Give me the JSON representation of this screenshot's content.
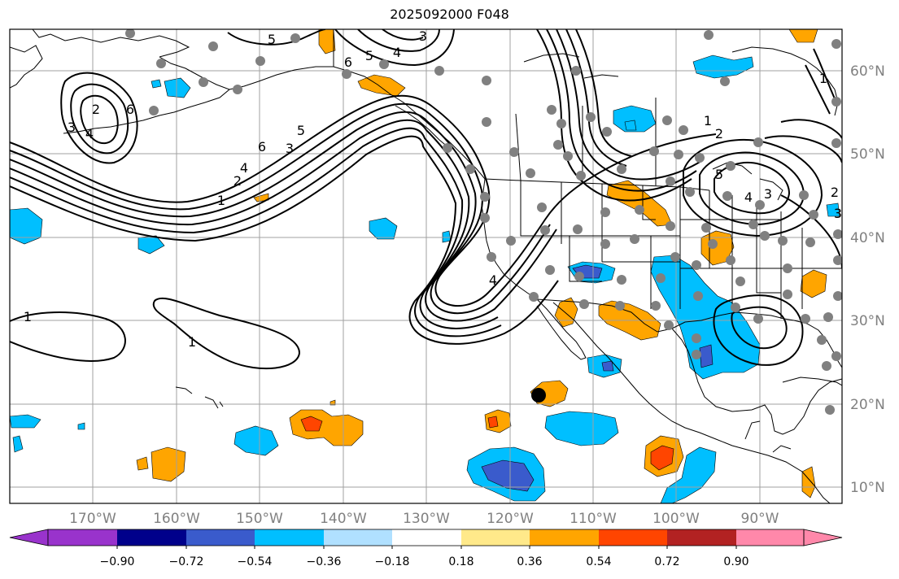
{
  "title": "2025092000 F048",
  "lon_labels": [
    "170°W",
    "160°W",
    "150°W",
    "140°W",
    "130°W",
    "120°W",
    "110°W",
    "100°W",
    "90°W"
  ],
  "lat_labels": [
    "60°N",
    "50°N",
    "40°N",
    "30°N",
    "20°N",
    "10°N"
  ],
  "contour_labels": [
    "5",
    "4",
    "3",
    "6",
    "5",
    "4",
    "2",
    "3",
    "6",
    "1",
    "2",
    "4",
    "6",
    "3",
    "5",
    "1",
    "1",
    "1",
    "2",
    "5",
    "4",
    "3",
    "2",
    "3",
    "1",
    "4"
  ],
  "colorbar": {
    "ticks": [
      "−0.90",
      "−0.72",
      "−0.54",
      "−0.36",
      "−0.18",
      "0.18",
      "0.36",
      "0.54",
      "0.72",
      "0.90"
    ],
    "colors": [
      "#9933cc",
      "#00008b",
      "#3a5bcc",
      "#00bfff",
      "#b0e0ff",
      "#ffffff",
      "#ffe98a",
      "#ffa500",
      "#ff4500",
      "#b22222",
      "#ff88aa"
    ]
  },
  "colors": {
    "grid": "#a0a0a0",
    "coast": "#000000",
    "station": "#808080",
    "marker": "#000000",
    "axis_label": "#808080"
  }
}
